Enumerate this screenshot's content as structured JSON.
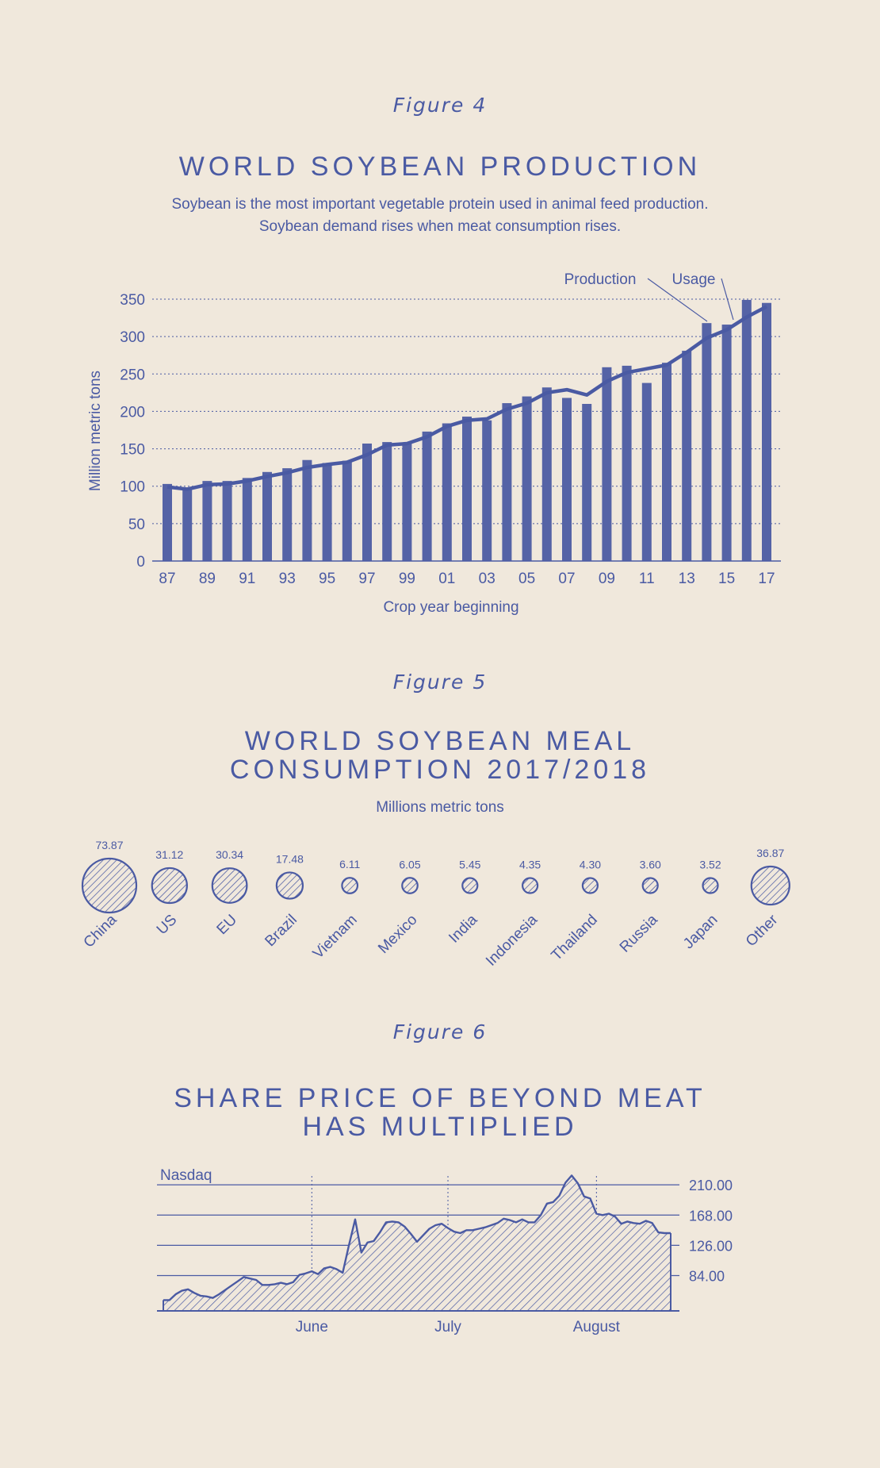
{
  "figures": [
    {
      "label": "Figure 4",
      "title": "WORLD SOYBEAN PRODUCTION",
      "subtitle_lines": [
        "Soybean is the most important vegetable protein used in animal feed production.",
        "Soybean demand rises when meat consumption rises."
      ]
    },
    {
      "label": "Figure 5",
      "title_lines": [
        "WORLD SOYBEAN MEAL",
        "CONSUMPTION 2017/2018"
      ],
      "subtitle": "Millions metric tons"
    },
    {
      "label": "Figure 6",
      "title_lines": [
        "SHARE PRICE OF BEYOND MEAT",
        "HAS MULTIPLIED"
      ]
    }
  ],
  "colors": {
    "ink": "#4a5aa3",
    "background": "#f0e8dc",
    "fill": "#5563a6"
  },
  "chart_data": [
    {
      "type": "bar",
      "title": "WORLD SOYBEAN PRODUCTION",
      "ylabel": "Million metric tons",
      "xlabel": "Crop year beginning",
      "ylim": [
        0,
        350
      ],
      "yticks": [
        0,
        50,
        100,
        150,
        200,
        250,
        300,
        350
      ],
      "grid": "horizontal dotted",
      "x_tick_labels": [
        "87",
        "89",
        "91",
        "93",
        "95",
        "97",
        "99",
        "01",
        "03",
        "05",
        "07",
        "09",
        "11",
        "13",
        "15",
        "17"
      ],
      "categories": [
        "87",
        "88",
        "89",
        "90",
        "91",
        "92",
        "93",
        "94",
        "95",
        "96",
        "97",
        "98",
        "99",
        "00",
        "01",
        "02",
        "03",
        "04",
        "05",
        "06",
        "07",
        "08",
        "09",
        "10",
        "11",
        "12",
        "13",
        "14",
        "15",
        "16",
        "17"
      ],
      "series": [
        {
          "name": "Production",
          "type": "bar",
          "values": [
            103,
            98,
            107,
            107,
            111,
            119,
            124,
            135,
            131,
            134,
            157,
            159,
            158,
            173,
            184,
            193,
            188,
            211,
            220,
            232,
            218,
            210,
            259,
            261,
            238,
            265,
            281,
            318,
            316,
            349,
            345
          ]
        },
        {
          "name": "Usage",
          "type": "line",
          "values": [
            99,
            96,
            102,
            103,
            107,
            113,
            118,
            125,
            129,
            132,
            142,
            155,
            157,
            166,
            180,
            188,
            190,
            203,
            211,
            225,
            229,
            222,
            240,
            252,
            257,
            262,
            279,
            298,
            309,
            326,
            340
          ]
        }
      ]
    },
    {
      "type": "bubble",
      "title": "WORLD SOYBEAN MEAL CONSUMPTION 2017/2018",
      "unit": "Millions metric tons",
      "categories": [
        "China",
        "US",
        "EU",
        "Brazil",
        "Vietnam",
        "Mexico",
        "India",
        "Indonesia",
        "Thailand",
        "Russia",
        "Japan",
        "Other"
      ],
      "values": [
        73.87,
        31.12,
        30.34,
        17.48,
        6.11,
        6.05,
        5.45,
        4.35,
        4.3,
        3.6,
        3.52,
        36.87
      ],
      "value_labels": [
        "73.87",
        "31.12",
        "30.34",
        "17.48",
        "6.11",
        "6.05",
        "5.45",
        "4.35",
        "4.30",
        "3.60",
        "3.52",
        "36.87"
      ]
    },
    {
      "type": "area",
      "title": "SHARE PRICE OF BEYOND MEAT HAS MULTIPLIED",
      "source_label": "Nasdaq",
      "yticks": [
        84.0,
        126.0,
        168.0,
        210.0
      ],
      "ytick_labels": [
        "84.00",
        "126.00",
        "168.00",
        "210.00"
      ],
      "ylim": [
        35,
        230
      ],
      "month_labels": [
        {
          "label": "June",
          "day": 24
        },
        {
          "label": "July",
          "day": 46
        },
        {
          "label": "August",
          "day": 70
        }
      ],
      "x_range": [
        0,
        82
      ],
      "points": [
        [
          0,
          50
        ],
        [
          1,
          50
        ],
        [
          2,
          58
        ],
        [
          3,
          63
        ],
        [
          4,
          65
        ],
        [
          5,
          60
        ],
        [
          6,
          56
        ],
        [
          7,
          55
        ],
        [
          8,
          53
        ],
        [
          9,
          58
        ],
        [
          10,
          64
        ],
        [
          11,
          70
        ],
        [
          12,
          76
        ],
        [
          13,
          82
        ],
        [
          14,
          80
        ],
        [
          15,
          78
        ],
        [
          16,
          71
        ],
        [
          17,
          71
        ],
        [
          18,
          72
        ],
        [
          19,
          74
        ],
        [
          20,
          72
        ],
        [
          21,
          75
        ],
        [
          22,
          85
        ],
        [
          23,
          87
        ],
        [
          24,
          90
        ],
        [
          25,
          86
        ],
        [
          26,
          94
        ],
        [
          27,
          96
        ],
        [
          28,
          93
        ],
        [
          29,
          88
        ],
        [
          30,
          126
        ],
        [
          31,
          162
        ],
        [
          32,
          116
        ],
        [
          33,
          130
        ],
        [
          34,
          132
        ],
        [
          35,
          144
        ],
        [
          36,
          158
        ],
        [
          37,
          159
        ],
        [
          38,
          158
        ],
        [
          39,
          152
        ],
        [
          40,
          142
        ],
        [
          41,
          131
        ],
        [
          42,
          140
        ],
        [
          43,
          149
        ],
        [
          44,
          154
        ],
        [
          45,
          156
        ],
        [
          46,
          150
        ],
        [
          47,
          145
        ],
        [
          48,
          143
        ],
        [
          49,
          147
        ],
        [
          50,
          147
        ],
        [
          51,
          149
        ],
        [
          52,
          151
        ],
        [
          53,
          154
        ],
        [
          54,
          157
        ],
        [
          55,
          163
        ],
        [
          56,
          161
        ],
        [
          57,
          158
        ],
        [
          58,
          162
        ],
        [
          59,
          158
        ],
        [
          60,
          158
        ],
        [
          61,
          168
        ],
        [
          62,
          184
        ],
        [
          63,
          186
        ],
        [
          64,
          195
        ],
        [
          65,
          213
        ],
        [
          66,
          223
        ],
        [
          67,
          212
        ],
        [
          68,
          194
        ],
        [
          69,
          191
        ],
        [
          70,
          170
        ],
        [
          71,
          168
        ],
        [
          72,
          170
        ],
        [
          73,
          166
        ],
        [
          74,
          156
        ],
        [
          75,
          159
        ],
        [
          76,
          157
        ],
        [
          77,
          156
        ],
        [
          78,
          160
        ],
        [
          79,
          157
        ],
        [
          80,
          144
        ],
        [
          81,
          143
        ],
        [
          82,
          143
        ]
      ]
    }
  ]
}
